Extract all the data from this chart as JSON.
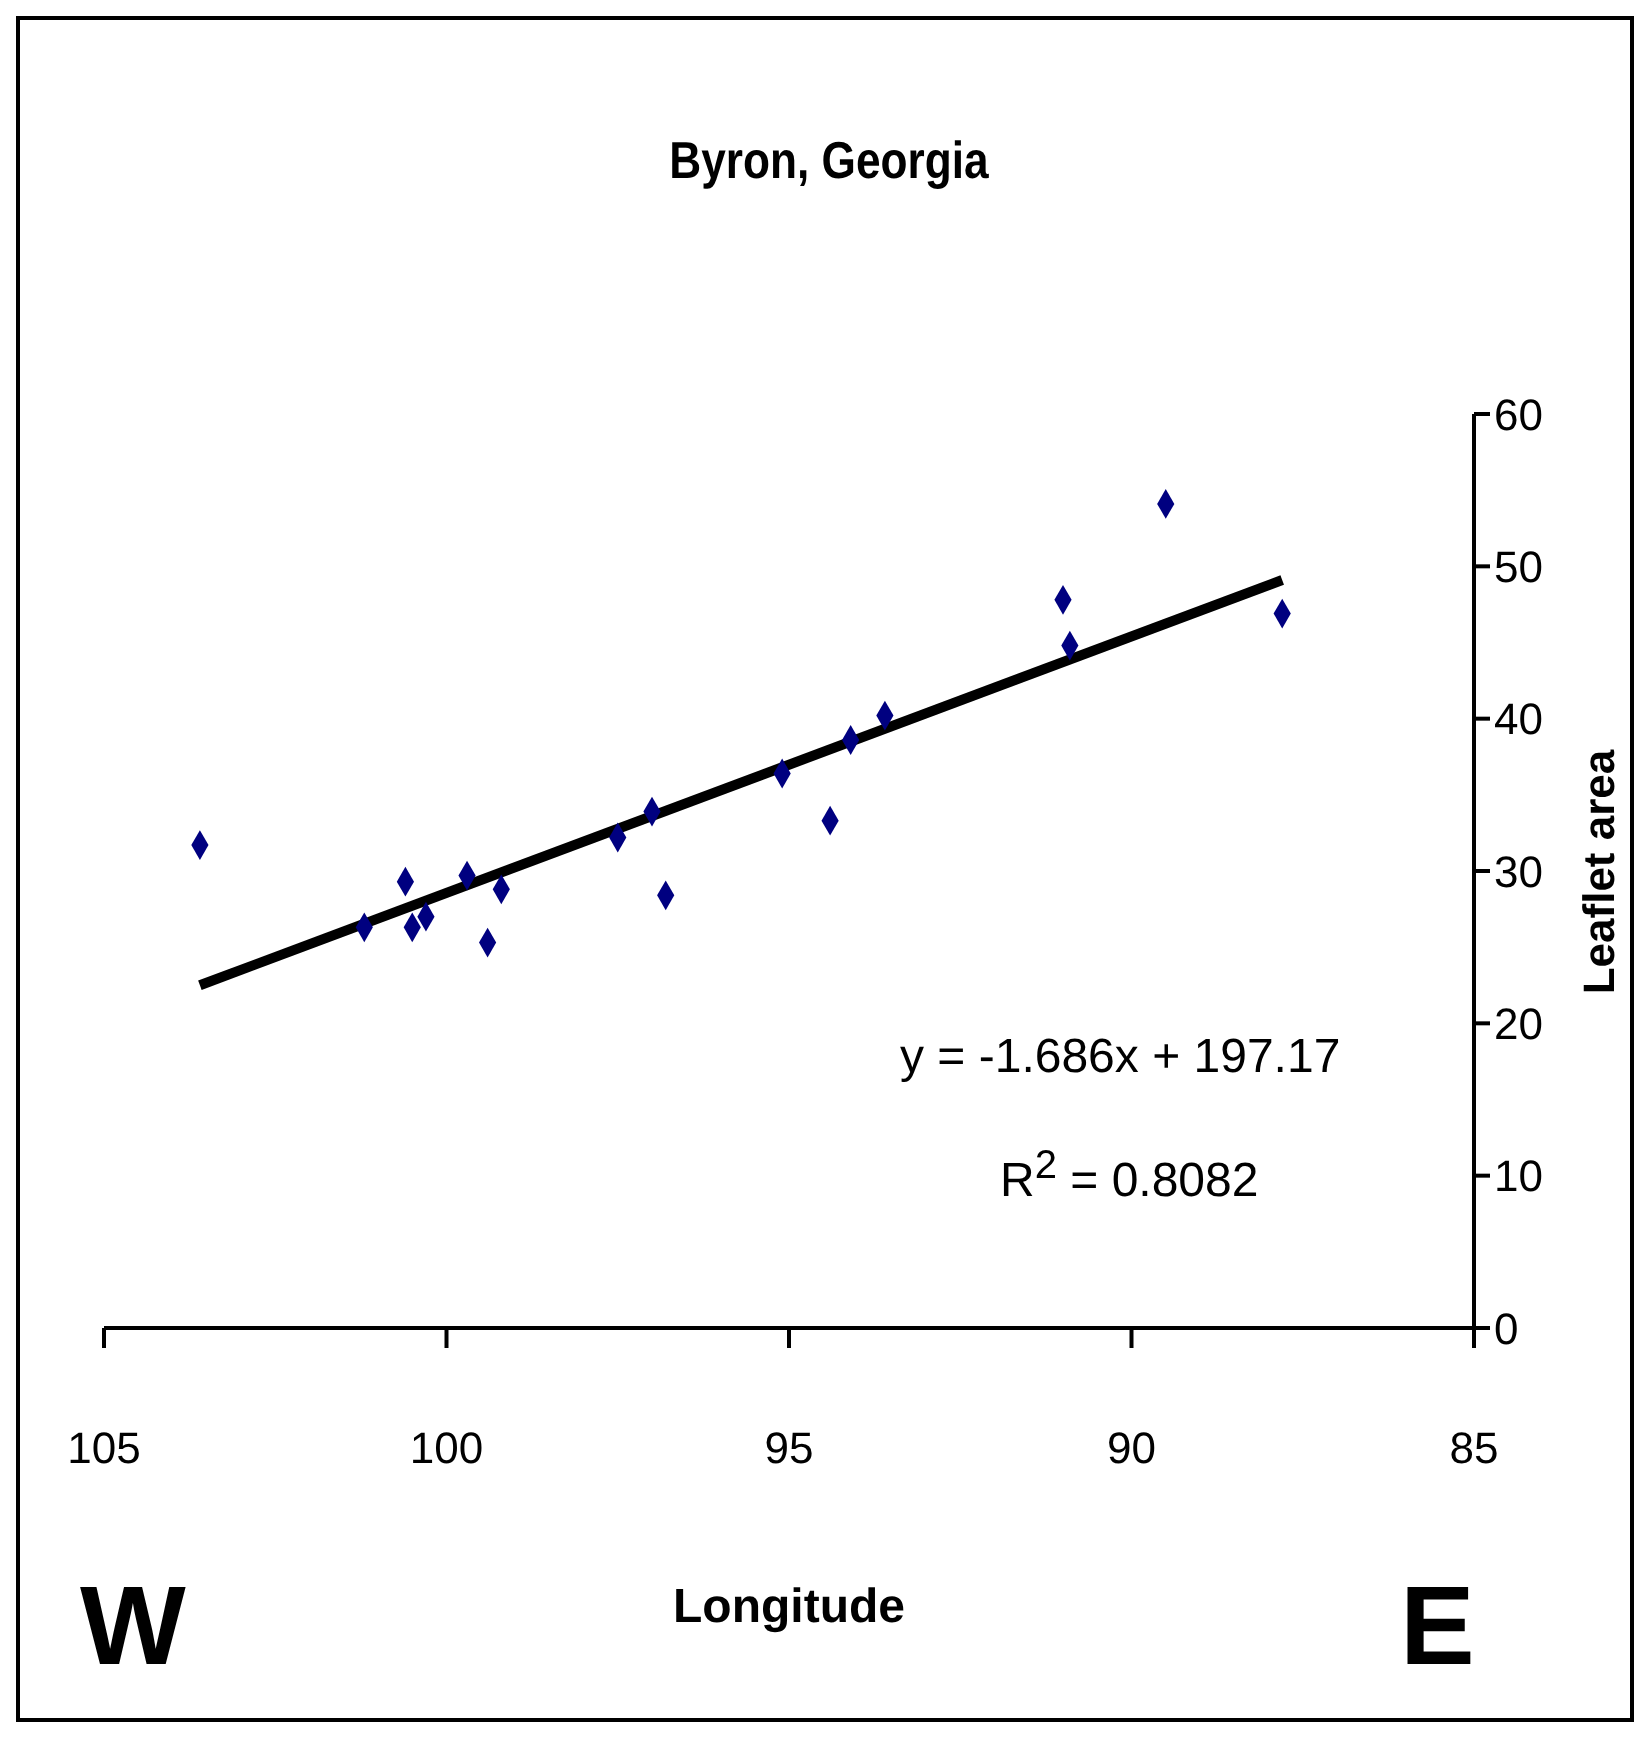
{
  "chart_data": {
    "type": "scatter",
    "title": "Byron, Georgia",
    "xlabel": "Longitude",
    "ylabel": "Leaflet area",
    "xlim": [
      105,
      85
    ],
    "xticks": [
      105,
      100,
      95,
      90,
      85
    ],
    "ylim": [
      0,
      60
    ],
    "yticks": [
      0,
      10,
      20,
      30,
      40,
      50,
      60
    ],
    "marker": "diamond",
    "annotations": [
      "y = -1.686x + 197.17",
      "R$^{2}$ = 0.8082",
      "W",
      "E"
    ],
    "series": [
      {
        "color": "#000080",
        "x": [
          103.6,
          101.2,
          100.6,
          100.5,
          100.3,
          99.7,
          99.4,
          99.2,
          97.5,
          97.0,
          96.8,
          95.1,
          94.4,
          94.1,
          93.6,
          91.0,
          90.9,
          89.5,
          87.8
        ],
        "values": [
          31.7,
          26.3,
          29.3,
          26.3,
          27.0,
          29.7,
          25.3,
          28.8,
          32.2,
          33.9,
          28.4,
          36.4,
          33.3,
          38.6,
          40.2,
          47.8,
          44.8,
          54.1,
          46.9
        ]
      },
      {
        "type": "line",
        "color": "#000000",
        "x": [
          103.6,
          87.8
        ],
        "values": [
          22.5,
          49.1
        ],
        "marker": "none"
      }
    ]
  }
}
